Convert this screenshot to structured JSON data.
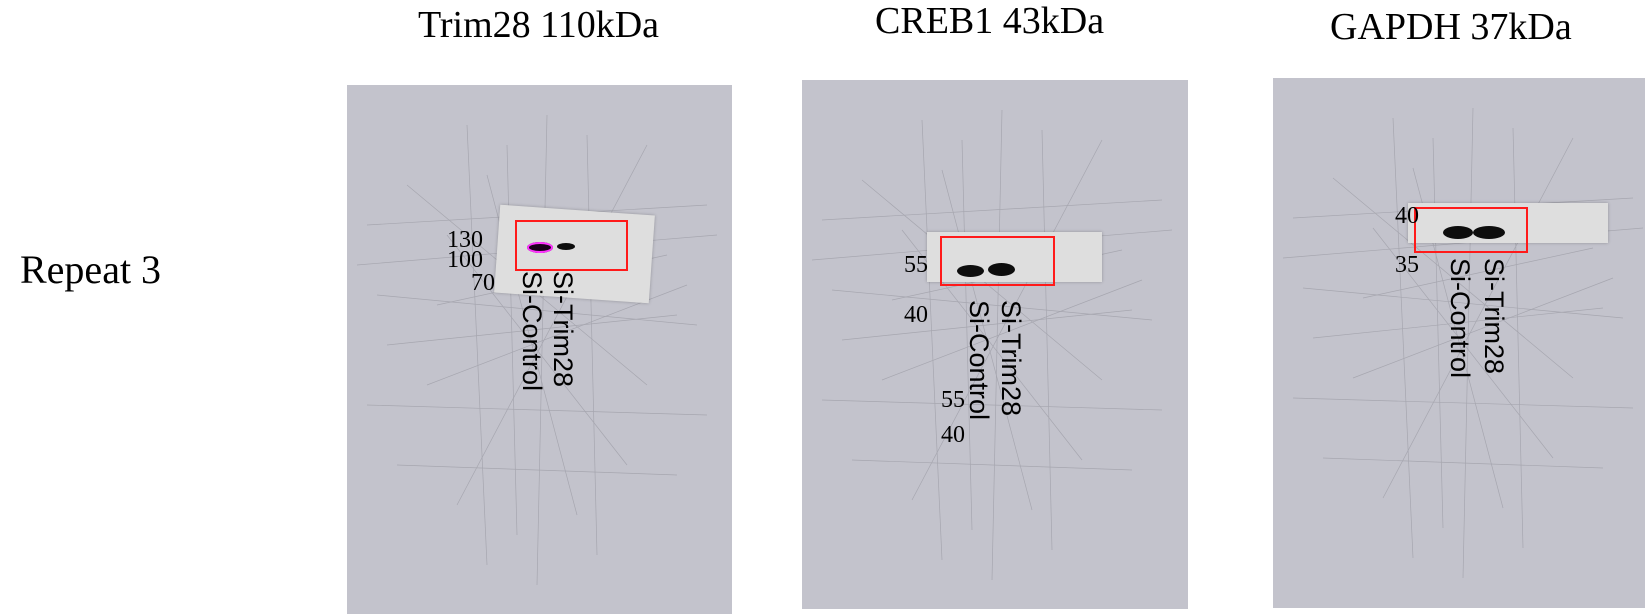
{
  "row_label": "Repeat 3",
  "panels": [
    {
      "title": "Trim28 110kDa",
      "markers": [
        "130",
        "100",
        "70"
      ],
      "lanes": [
        "Si-Control",
        "Si-Trim28"
      ]
    },
    {
      "title": "CREB1 43kDa",
      "markers": [
        "55",
        "40"
      ],
      "extra_markers": [
        "55",
        "40"
      ],
      "lanes": [
        "Si-Control",
        "Si-Trim28"
      ]
    },
    {
      "title": "GAPDH 37kDa",
      "markers": [
        "40",
        "35"
      ],
      "lanes": [
        "Si-Control",
        "Si-Trim28"
      ]
    }
  ],
  "colors": {
    "membrane": "#c3c3cc",
    "strip": "#dedede",
    "band": "#0d0d0d",
    "highlight_band": "#ff33ff",
    "box": "#ff1a1a"
  }
}
